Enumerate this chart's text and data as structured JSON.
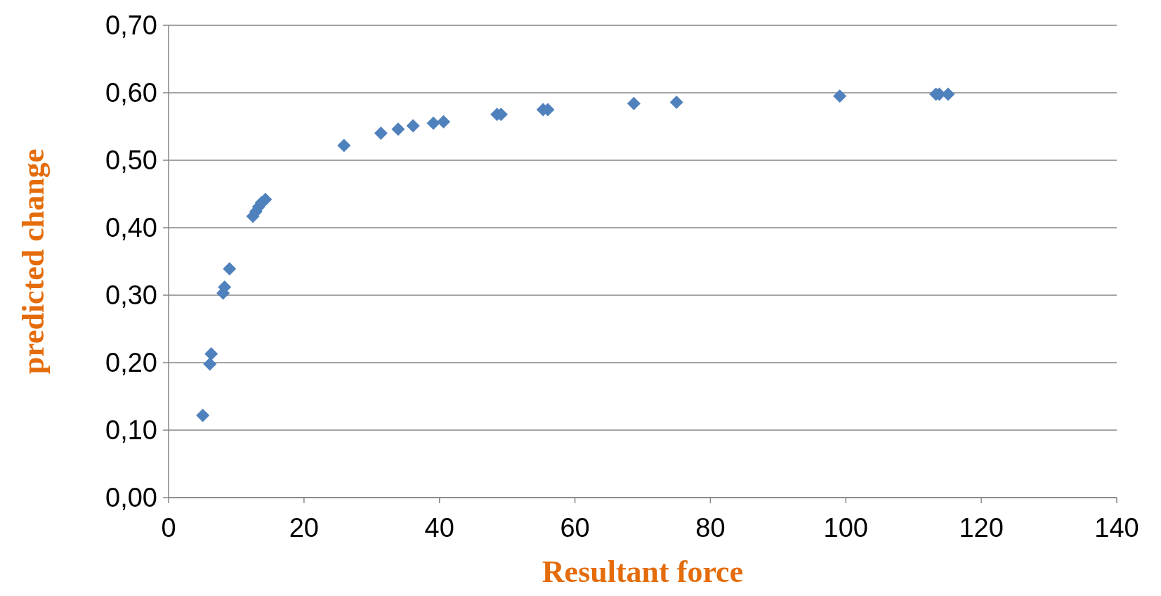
{
  "chart_data": {
    "type": "scatter",
    "xlabel": "Resultant force",
    "ylabel": "predicted change",
    "x": [
      5.05,
      6.1,
      6.3,
      8.05,
      8.27,
      9.0,
      12.45,
      12.9,
      13.3,
      13.7,
      14.3,
      25.9,
      31.35,
      33.9,
      36.1,
      39.1,
      40.6,
      48.5,
      49.1,
      55.3,
      56.0,
      68.7,
      75.0,
      99.1,
      113.3,
      113.8,
      115.1
    ],
    "series": [
      {
        "color": "#4f81bd",
        "values": [
          0.122,
          0.198,
          0.213,
          0.303,
          0.312,
          0.339,
          0.417,
          0.424,
          0.431,
          0.437,
          0.442,
          0.522,
          0.54,
          0.546,
          0.551,
          0.555,
          0.557,
          0.568,
          0.568,
          0.575,
          0.575,
          0.584,
          0.586,
          0.595,
          0.598,
          0.598,
          0.598
        ]
      }
    ],
    "xlim": [
      0,
      140
    ],
    "xticks": [
      0,
      20,
      40,
      60,
      80,
      100,
      120,
      140
    ],
    "ylim": [
      0,
      0.7
    ],
    "yticks": [
      {
        "value": 0,
        "label": "0,00"
      },
      {
        "value": 0.1,
        "label": "0,10"
      },
      {
        "value": 0.2,
        "label": "0,20"
      },
      {
        "value": 0.3,
        "label": "0,30"
      },
      {
        "value": 0.4,
        "label": "0,40"
      },
      {
        "value": 0.5,
        "label": "0,50"
      },
      {
        "value": 0.6,
        "label": "0,60"
      },
      {
        "value": 0.7,
        "label": "0,70"
      }
    ],
    "grid": "y",
    "marker": "diamond"
  }
}
